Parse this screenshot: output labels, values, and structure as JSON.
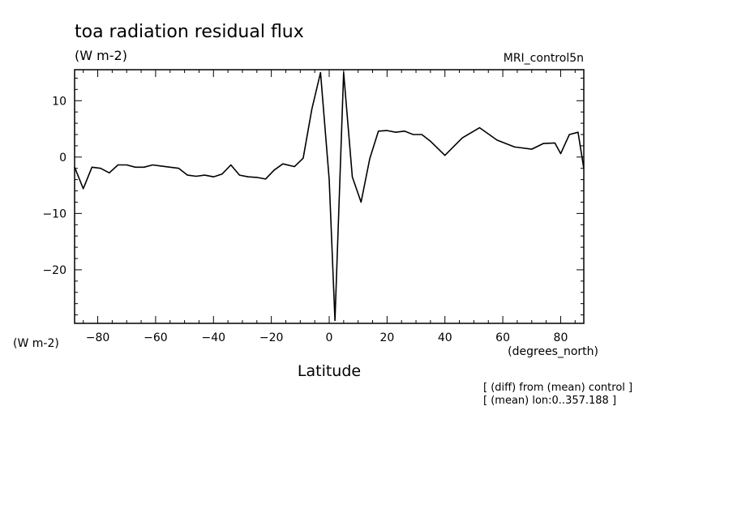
{
  "chart_data": {
    "type": "line",
    "title": "toa radiation residual flux",
    "units": "(W m-2)",
    "dataset": "MRI_control5n",
    "ylabel": "(W m-2)",
    "xlabel": "Latitude",
    "xunits": "(degrees_north)",
    "notes": [
      "[ (diff) from (mean) control ]",
      "[ (mean) lon:0..357.188 ]"
    ],
    "xlim": [
      -88,
      88
    ],
    "ylim": [
      -29.5,
      15.5
    ],
    "xticks": [
      -80,
      -60,
      -40,
      -20,
      0,
      20,
      40,
      60,
      80
    ],
    "yticks": [
      -20,
      -10,
      0,
      10
    ],
    "grid": false,
    "series": [
      {
        "x": [
          -88,
          -85,
          -82,
          -79,
          -76,
          -73,
          -70,
          -67,
          -64,
          -61,
          -58,
          -55,
          -52,
          -49,
          -46,
          -43,
          -40,
          -37,
          -34,
          -31,
          -28,
          -25,
          -22,
          -19,
          -16,
          -12,
          -9,
          -6,
          -3,
          0,
          2,
          5,
          8,
          11,
          14,
          17,
          20,
          23,
          26,
          29,
          32,
          35,
          40,
          46,
          52,
          58,
          64,
          70,
          74,
          78,
          80,
          83,
          86,
          88
        ],
        "y": [
          -1.8,
          -5.6,
          -1.8,
          -2,
          -2.8,
          -1.4,
          -1.4,
          -1.8,
          -1.8,
          -1.4,
          -1.6,
          -1.8,
          -2,
          -3.2,
          -3.4,
          -3.2,
          -3.5,
          -3,
          -1.4,
          -3.2,
          -3.5,
          -3.6,
          -3.9,
          -2.3,
          -1.2,
          -1.7,
          -0.2,
          8.5,
          15,
          -4,
          -29,
          15,
          -3.5,
          -8,
          -0.3,
          4.6,
          4.7,
          4.4,
          4.6,
          4,
          4,
          2.8,
          0.3,
          3.4,
          5.2,
          3,
          1.8,
          1.4,
          2.4,
          2.5,
          0.6,
          4,
          4.4,
          -2
        ]
      }
    ]
  }
}
